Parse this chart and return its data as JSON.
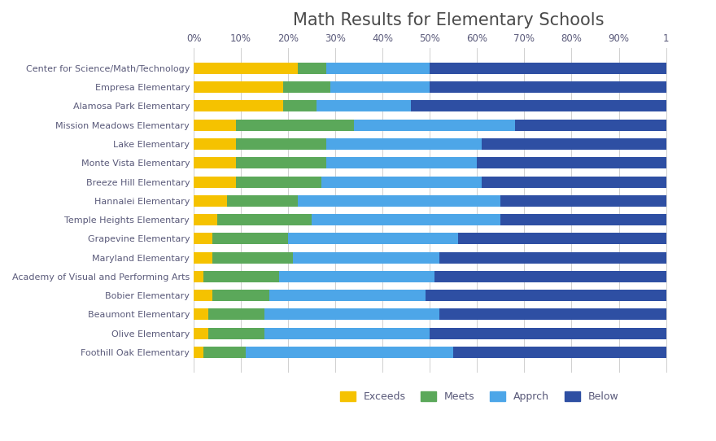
{
  "title": "Math Results for Elementary Schools",
  "schools": [
    "Center for Science/Math/Technology",
    "Empresa Elementary",
    "Alamosa Park Elementary",
    "Mission Meadows Elementary",
    "Lake Elementary",
    "Monte Vista Elementary",
    "Breeze Hill Elementary",
    "Hannalei Elementary",
    "Temple Heights Elementary",
    "Grapevine Elementary",
    "Maryland Elementary",
    "Academy of Visual and Performing Arts",
    "Bobier Elementary",
    "Beaumont Elementary",
    "Olive Elementary",
    "Foothill Oak Elementary"
  ],
  "exceeds": [
    22,
    19,
    19,
    9,
    9,
    9,
    9,
    7,
    5,
    4,
    4,
    2,
    4,
    3,
    3,
    2
  ],
  "meets": [
    6,
    10,
    7,
    25,
    19,
    19,
    18,
    15,
    20,
    16,
    17,
    16,
    12,
    12,
    12,
    9
  ],
  "apprch": [
    22,
    21,
    20,
    34,
    33,
    32,
    34,
    43,
    40,
    36,
    31,
    33,
    33,
    37,
    35,
    44
  ],
  "below": [
    50,
    50,
    54,
    32,
    39,
    40,
    39,
    35,
    35,
    44,
    48,
    49,
    51,
    48,
    50,
    45
  ],
  "colors": {
    "Exceeds": "#F5C200",
    "Meets": "#5BA85A",
    "Apprch": "#4DA6E8",
    "Below": "#2E4FA3"
  },
  "background_color": "#FFFFFF",
  "title_color": "#4A4A4A",
  "label_color": "#5A5A7A",
  "grid_color": "#D0D0D0",
  "xlim_max": 108,
  "title_fontsize": 15,
  "label_fontsize": 8.0,
  "tick_fontsize": 8.5
}
